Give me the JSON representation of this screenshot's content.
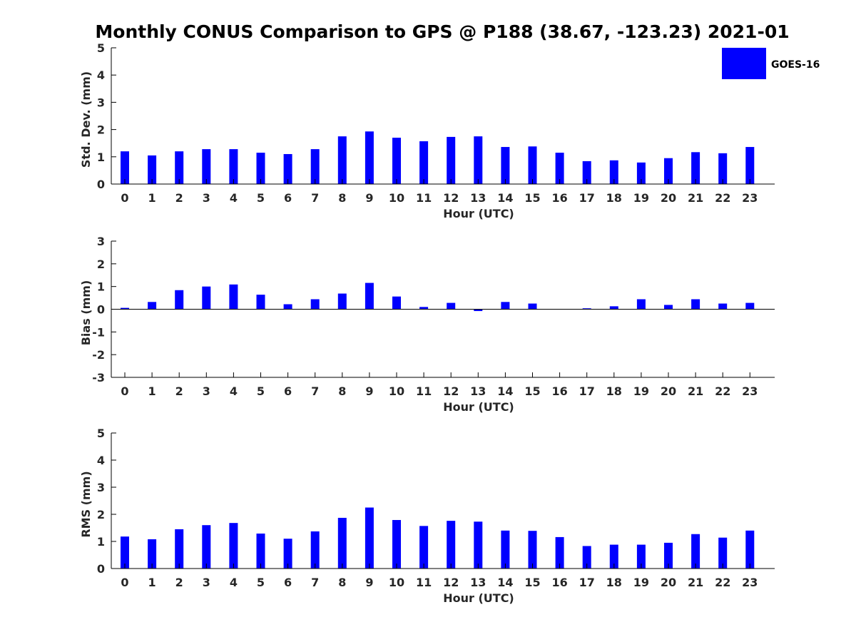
{
  "chart_data": [
    {
      "type": "bar",
      "title": "Monthly CONUS Comparison to GPS @ P188 (38.67, -123.23) 2021-01",
      "xlabel": "Hour (UTC)",
      "ylabel": "Std. Dev. (mm)",
      "ylim": [
        0,
        5
      ],
      "yticks": [
        "0",
        "1",
        "2",
        "3",
        "4",
        "5"
      ],
      "categories": [
        "0",
        "1",
        "2",
        "3",
        "4",
        "5",
        "6",
        "7",
        "8",
        "9",
        "10",
        "11",
        "12",
        "13",
        "14",
        "15",
        "16",
        "17",
        "18",
        "19",
        "20",
        "21",
        "22",
        "23"
      ],
      "series": [
        {
          "name": "GOES-16",
          "color": "#0000ff",
          "values": [
            1.2,
            1.05,
            1.2,
            1.28,
            1.28,
            1.15,
            1.1,
            1.28,
            1.75,
            1.93,
            1.7,
            1.57,
            1.73,
            1.75,
            1.36,
            1.38,
            1.15,
            0.84,
            0.87,
            0.79,
            0.95,
            1.17,
            1.13,
            1.36
          ]
        }
      ],
      "legend": {
        "position": "top-right",
        "entries": [
          "GOES-16"
        ]
      },
      "grid": false
    },
    {
      "type": "bar",
      "xlabel": "Hour (UTC)",
      "ylabel": "Bias (mm)",
      "ylim": [
        -3,
        3
      ],
      "yticks": [
        "-3",
        "-2",
        "-1",
        "0",
        "1",
        "2",
        "3"
      ],
      "categories": [
        "0",
        "1",
        "2",
        "3",
        "4",
        "5",
        "6",
        "7",
        "8",
        "9",
        "10",
        "11",
        "12",
        "13",
        "14",
        "15",
        "16",
        "17",
        "18",
        "19",
        "20",
        "21",
        "22",
        "23"
      ],
      "series": [
        {
          "name": "GOES-16",
          "color": "#0000ff",
          "values": [
            0.06,
            0.32,
            0.84,
            1.0,
            1.09,
            0.64,
            0.22,
            0.44,
            0.69,
            1.16,
            0.56,
            0.1,
            0.28,
            -0.08,
            0.32,
            0.25,
            0.0,
            0.04,
            0.13,
            0.44,
            0.19,
            0.44,
            0.25,
            0.28
          ]
        }
      ],
      "grid": false
    },
    {
      "type": "bar",
      "xlabel": "Hour (UTC)",
      "ylabel": "RMS (mm)",
      "ylim": [
        0,
        5
      ],
      "yticks": [
        "0",
        "1",
        "2",
        "3",
        "4",
        "5"
      ],
      "categories": [
        "0",
        "1",
        "2",
        "3",
        "4",
        "5",
        "6",
        "7",
        "8",
        "9",
        "10",
        "11",
        "12",
        "13",
        "14",
        "15",
        "16",
        "17",
        "18",
        "19",
        "20",
        "21",
        "22",
        "23"
      ],
      "series": [
        {
          "name": "GOES-16",
          "color": "#0000ff",
          "values": [
            1.18,
            1.08,
            1.45,
            1.6,
            1.68,
            1.29,
            1.1,
            1.37,
            1.87,
            2.25,
            1.79,
            1.57,
            1.76,
            1.73,
            1.4,
            1.39,
            1.16,
            0.83,
            0.88,
            0.88,
            0.95,
            1.27,
            1.14,
            1.4
          ]
        }
      ],
      "grid": false
    }
  ]
}
